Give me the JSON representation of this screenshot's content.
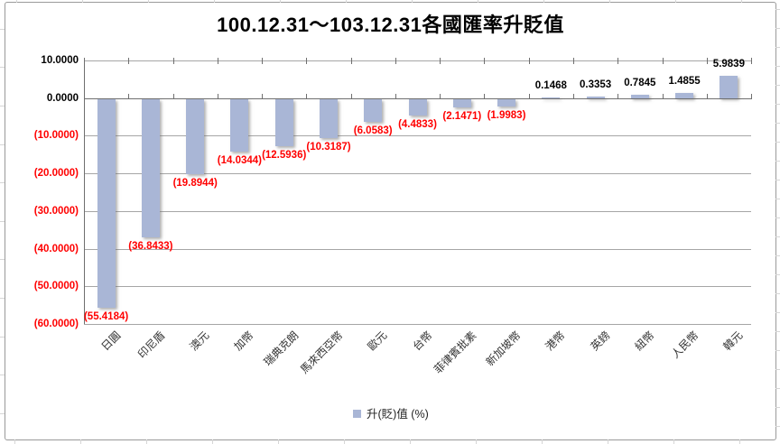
{
  "chart_data": {
    "type": "bar",
    "title": "100.12.31～103.12.31各國匯率升貶值",
    "series_name": "升(貶)值 (%)",
    "categories": [
      "日圓",
      "印尼盾",
      "澳元",
      "加幣",
      "瑞典克朗",
      "馬來西亞幣",
      "歐元",
      "台幣",
      "菲律賓批素",
      "新加坡幣",
      "港幣",
      "英鎊",
      "紐幣",
      "人民幣",
      "韓元"
    ],
    "values": [
      -55.4184,
      -36.8433,
      -19.8944,
      -14.0344,
      -12.5936,
      -10.3187,
      -6.0583,
      -4.4833,
      -2.1471,
      -1.9983,
      0.1468,
      0.3353,
      0.7845,
      1.4855,
      5.9839
    ],
    "ylim": [
      -60,
      10
    ],
    "ytick_step": 10,
    "ytick_labels": [
      "10.0000",
      "0.0000",
      "(10.0000)",
      "(20.0000)",
      "(30.0000)",
      "(40.0000)",
      "(50.0000)",
      "(60.0000)"
    ],
    "number_format": "accounting-4dp",
    "grid": true,
    "legend_position": "bottom",
    "colors": {
      "bar": "#a9b6d6",
      "negative_label": "#ff0000",
      "positive_label": "#000000",
      "axis_label_positive": "#000000",
      "axis_label_negative": "#ff0000",
      "gridline": "#a6a6a6",
      "axis": "#6f6f6f"
    }
  }
}
